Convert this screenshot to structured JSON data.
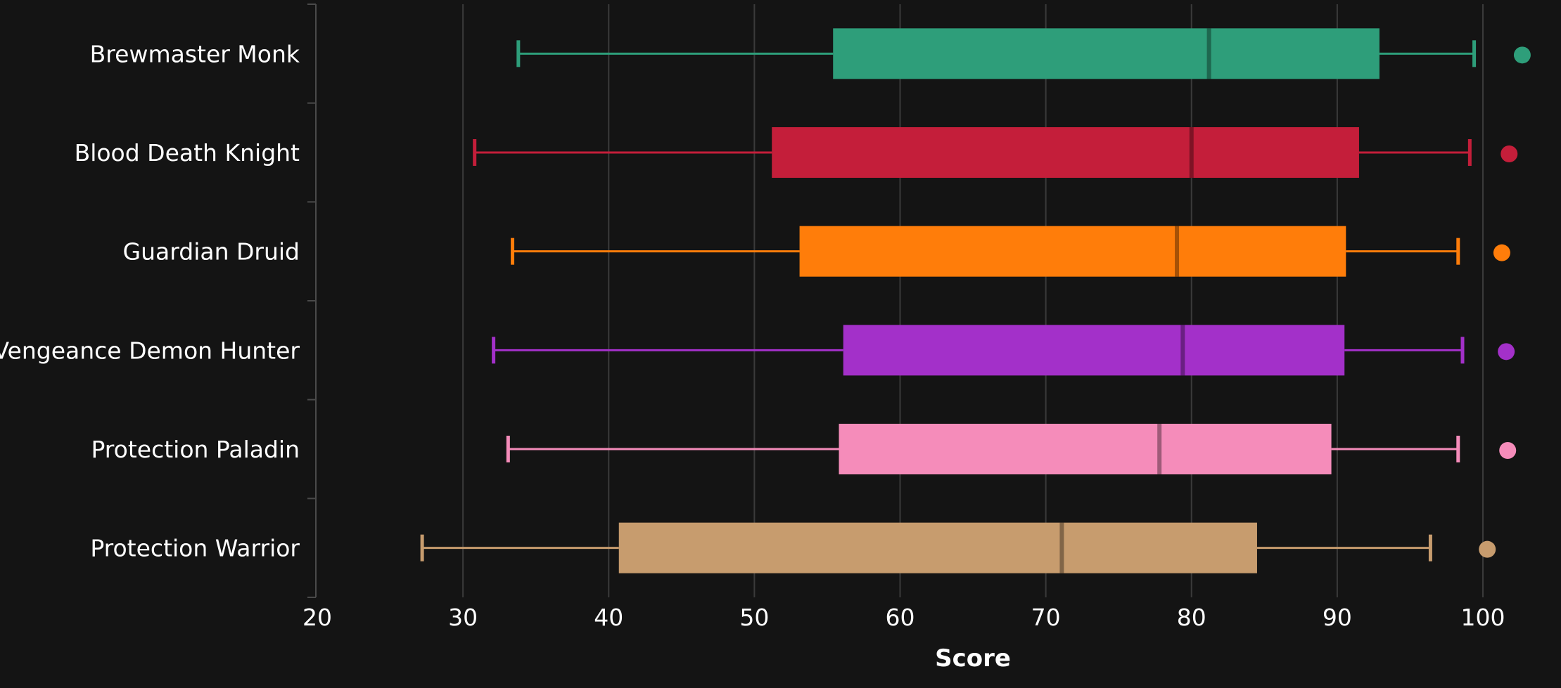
{
  "chart_data": {
    "type": "box",
    "orientation": "horizontal",
    "xlabel": "Score",
    "ylabel": "",
    "xlim": [
      20,
      102
    ],
    "xticks": [
      20,
      30,
      40,
      50,
      60,
      70,
      80,
      90,
      100
    ],
    "grid": "vertical",
    "legend": "none",
    "categories": [
      "Brewmaster Monk",
      "Blood Death Knight",
      "Guardian Druid",
      "Vengeance Demon Hunter",
      "Protection Paladin",
      "Protection Warrior"
    ],
    "series": [
      {
        "category": "Brewmaster Monk",
        "color": "#2e9e7a",
        "whisker_low": 33.8,
        "q1": 55.4,
        "median": 81.2,
        "q3": 92.9,
        "whisker_high": 99.4,
        "outlier": 102.7
      },
      {
        "category": "Blood Death Knight",
        "color": "#c41e3a",
        "whisker_low": 30.8,
        "q1": 51.2,
        "median": 80.0,
        "q3": 91.5,
        "whisker_high": 99.1,
        "outlier": 101.8
      },
      {
        "category": "Guardian Druid",
        "color": "#ff7d0a",
        "whisker_low": 33.4,
        "q1": 53.1,
        "median": 79.0,
        "q3": 90.6,
        "whisker_high": 98.3,
        "outlier": 101.3
      },
      {
        "category": "Vengeance Demon Hunter",
        "color": "#a330c9",
        "whisker_low": 32.1,
        "q1": 56.1,
        "median": 79.4,
        "q3": 90.5,
        "whisker_high": 98.6,
        "outlier": 101.6
      },
      {
        "category": "Protection Paladin",
        "color": "#f58cba",
        "whisker_low": 33.1,
        "q1": 55.8,
        "median": 77.8,
        "q3": 89.6,
        "whisker_high": 98.3,
        "outlier": 101.7
      },
      {
        "category": "Protection Warrior",
        "color": "#c79c6e",
        "whisker_low": 27.2,
        "q1": 40.7,
        "median": 71.1,
        "q3": 84.5,
        "whisker_high": 96.4,
        "outlier": 100.3
      }
    ]
  }
}
